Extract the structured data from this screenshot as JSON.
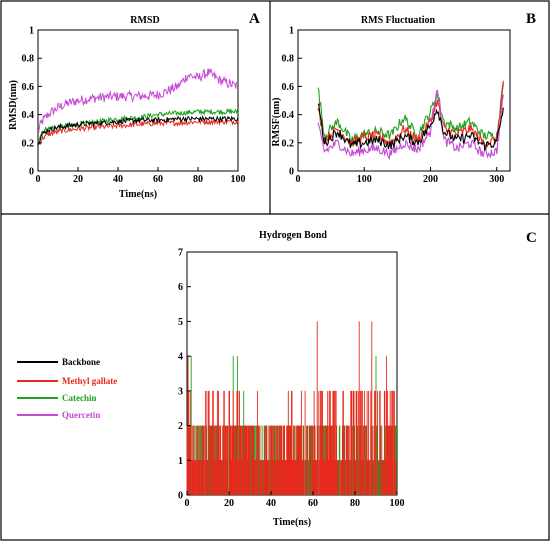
{
  "legend": {
    "entries": [
      {
        "label": "Backbone",
        "color": "#000000"
      },
      {
        "label": "Methyl gallate",
        "color": "#e8281c"
      },
      {
        "label": "Catechin",
        "color": "#1fa01f"
      },
      {
        "label": "Quercetin",
        "color": "#c64ad6"
      }
    ]
  },
  "chart_data": [
    {
      "id": "A",
      "type": "line",
      "title": "RMSD",
      "panel_label": "A",
      "xlabel": "Time(ns)",
      "ylabel": "RMSD(nm)",
      "xlim": [
        0,
        100
      ],
      "ylim": [
        0,
        1
      ],
      "xticks": [
        0,
        20,
        40,
        60,
        80,
        100
      ],
      "yticks": [
        0,
        0.2,
        0.4,
        0.6,
        0.8,
        1
      ],
      "ytick_labels": [
        "0",
        "0.2",
        "0.4",
        "0.6",
        "0.8",
        "1"
      ],
      "series": [
        {
          "name": "Backbone",
          "color": "#000000",
          "x": [
            0,
            2,
            5,
            10,
            15,
            20,
            30,
            40,
            50,
            60,
            70,
            80,
            90,
            100
          ],
          "y": [
            0.2,
            0.26,
            0.29,
            0.31,
            0.32,
            0.33,
            0.34,
            0.35,
            0.36,
            0.36,
            0.37,
            0.37,
            0.37,
            0.37
          ]
        },
        {
          "name": "Methyl gallate",
          "color": "#e8281c",
          "x": [
            0,
            2,
            5,
            10,
            15,
            20,
            30,
            40,
            50,
            60,
            70,
            80,
            90,
            100
          ],
          "y": [
            0.18,
            0.23,
            0.26,
            0.28,
            0.29,
            0.3,
            0.31,
            0.32,
            0.33,
            0.34,
            0.34,
            0.35,
            0.35,
            0.35
          ]
        },
        {
          "name": "Catechin",
          "color": "#1fa01f",
          "x": [
            0,
            2,
            5,
            10,
            15,
            20,
            30,
            40,
            50,
            60,
            70,
            80,
            90,
            100
          ],
          "y": [
            0.22,
            0.28,
            0.3,
            0.31,
            0.32,
            0.33,
            0.35,
            0.37,
            0.38,
            0.4,
            0.41,
            0.42,
            0.42,
            0.42
          ]
        },
        {
          "name": "Quercetin",
          "color": "#c64ad6",
          "x": [
            0,
            2,
            5,
            10,
            15,
            20,
            30,
            40,
            50,
            60,
            70,
            75,
            80,
            85,
            90,
            95,
            100
          ],
          "y": [
            0.28,
            0.35,
            0.4,
            0.45,
            0.48,
            0.5,
            0.52,
            0.53,
            0.53,
            0.54,
            0.6,
            0.68,
            0.66,
            0.7,
            0.65,
            0.62,
            0.6
          ]
        }
      ]
    },
    {
      "id": "B",
      "type": "line",
      "title": "RMS Fluctuation",
      "panel_label": "B",
      "xlabel": "",
      "ylabel": "RMSF(nm)",
      "xlim": [
        0,
        320
      ],
      "ylim": [
        0,
        1
      ],
      "xticks": [
        0,
        100,
        200,
        300
      ],
      "yticks": [
        0,
        0.2,
        0.4,
        0.6,
        0.8,
        1
      ],
      "ytick_labels": [
        "0",
        "0.2",
        "0.4",
        "0.6",
        "0.8",
        "1"
      ],
      "series": [
        {
          "name": "Backbone",
          "color": "#000000",
          "x": [
            30,
            40,
            60,
            80,
            100,
            120,
            140,
            160,
            180,
            200,
            210,
            220,
            240,
            260,
            280,
            300,
            310
          ],
          "y": [
            0.5,
            0.2,
            0.28,
            0.18,
            0.2,
            0.22,
            0.18,
            0.25,
            0.2,
            0.32,
            0.45,
            0.28,
            0.22,
            0.25,
            0.18,
            0.2,
            0.45
          ]
        },
        {
          "name": "Methyl gallate",
          "color": "#e8281c",
          "x": [
            30,
            40,
            60,
            80,
            100,
            120,
            140,
            160,
            180,
            200,
            210,
            220,
            240,
            260,
            280,
            300,
            310
          ],
          "y": [
            0.45,
            0.22,
            0.3,
            0.2,
            0.24,
            0.25,
            0.2,
            0.3,
            0.22,
            0.35,
            0.5,
            0.3,
            0.26,
            0.3,
            0.2,
            0.22,
            0.65
          ]
        },
        {
          "name": "Catechin",
          "color": "#1fa01f",
          "x": [
            30,
            40,
            60,
            80,
            100,
            120,
            140,
            160,
            180,
            200,
            210,
            220,
            240,
            260,
            280,
            300,
            310
          ],
          "y": [
            0.6,
            0.25,
            0.35,
            0.22,
            0.26,
            0.28,
            0.25,
            0.38,
            0.25,
            0.42,
            0.55,
            0.35,
            0.3,
            0.35,
            0.25,
            0.25,
            0.6
          ]
        },
        {
          "name": "Quercetin",
          "color": "#c64ad6",
          "x": [
            30,
            40,
            60,
            80,
            100,
            120,
            140,
            160,
            180,
            200,
            210,
            220,
            240,
            260,
            280,
            300,
            310
          ],
          "y": [
            0.32,
            0.14,
            0.2,
            0.12,
            0.15,
            0.16,
            0.12,
            0.2,
            0.15,
            0.28,
            0.62,
            0.22,
            0.16,
            0.2,
            0.12,
            0.14,
            0.52
          ]
        }
      ]
    },
    {
      "id": "C",
      "type": "line",
      "title": "Hydrogen Bond",
      "panel_label": "C",
      "xlabel": "Time(ns)",
      "ylabel": "",
      "xlim": [
        0,
        100
      ],
      "ylim": [
        0,
        7
      ],
      "xticks": [
        0,
        20,
        40,
        60,
        80,
        100
      ],
      "yticks": [
        0,
        1,
        2,
        3,
        4,
        5,
        6,
        7
      ],
      "ytick_labels": [
        "0",
        "1",
        "2",
        "3",
        "4",
        "5",
        "6",
        "7"
      ],
      "series": [
        {
          "name": "Methyl gallate",
          "color": "#e8281c",
          "typical": [
            0,
            3
          ],
          "spikes": [
            [
              0.5,
              4
            ],
            [
              62,
              5
            ],
            [
              82,
              5
            ],
            [
              88,
              5
            ],
            [
              95,
              4
            ]
          ]
        },
        {
          "name": "Catechin",
          "color": "#1fa01f",
          "typical": [
            0,
            2
          ],
          "spikes": [
            [
              2,
              4
            ],
            [
              22,
              4
            ],
            [
              24,
              4
            ],
            [
              27,
              3
            ],
            [
              90,
              4
            ]
          ]
        },
        {
          "name": "Quercetin",
          "color": "#c64ad6",
          "typical": [
            0,
            1
          ],
          "spikes": [
            [
              30,
              2
            ],
            [
              45,
              2
            ],
            [
              60,
              1
            ]
          ]
        }
      ]
    }
  ]
}
